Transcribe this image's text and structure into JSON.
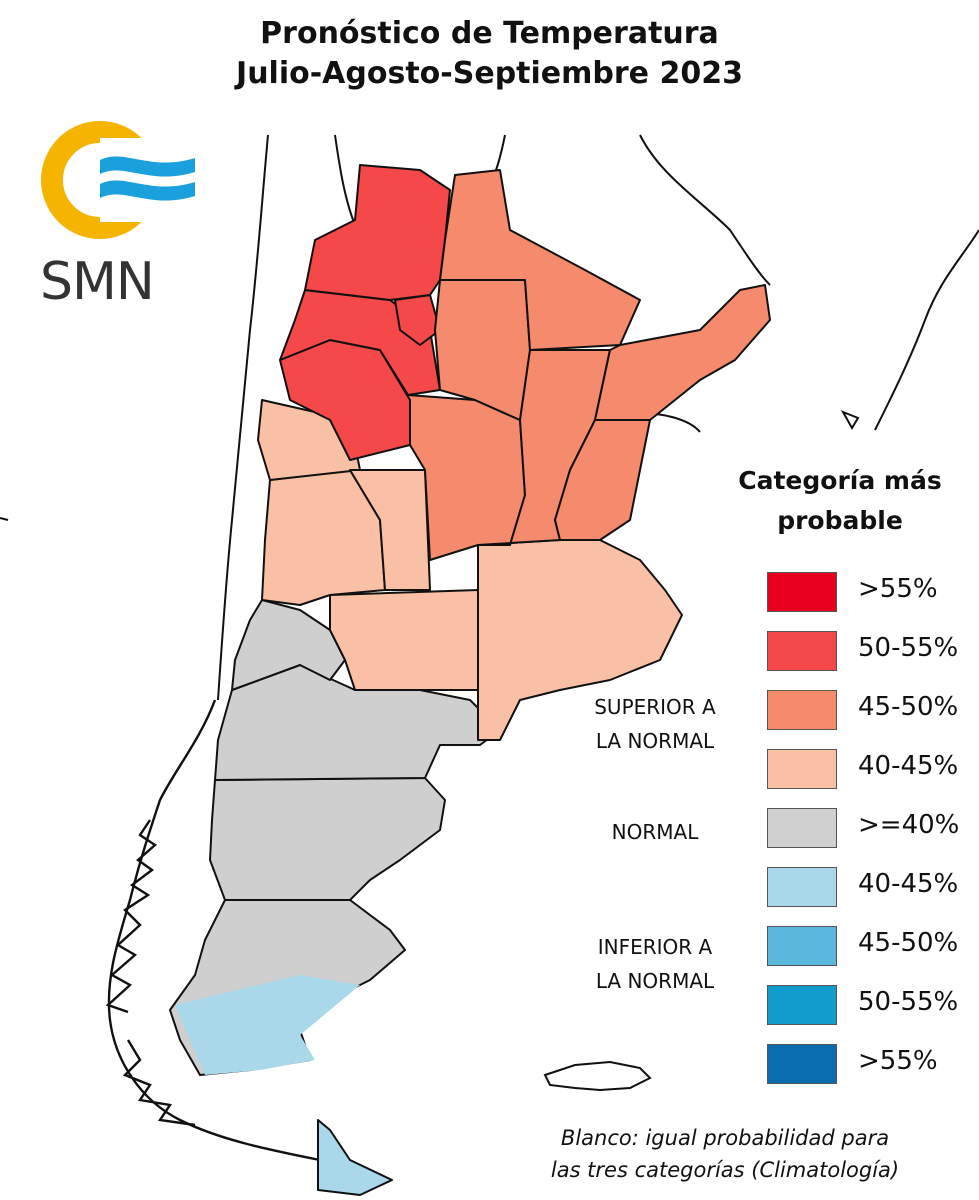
{
  "title": {
    "line1": "Pronóstico de Temperatura",
    "line2": "Julio-Agosto-Septiembre 2023"
  },
  "logo": {
    "text": "SMN",
    "ring_color": "#f5b400",
    "wave_color": "#1aa0dc"
  },
  "legend": {
    "title_line1": "Categoría más",
    "title_line2": "probable",
    "groups": [
      {
        "line1": "SUPERIOR A",
        "line2": "LA NORMAL"
      },
      {
        "line1": "NORMAL",
        "line2": ""
      },
      {
        "line1": "INFERIOR A",
        "line2": "LA NORMAL"
      }
    ],
    "items": [
      {
        "label": ">55%",
        "color": "#e8001e"
      },
      {
        "label": "50-55%",
        "color": "#f54848"
      },
      {
        "label": "45-50%",
        "color": "#f58a6c"
      },
      {
        "label": "40-45%",
        "color": "#f9c0a5"
      },
      {
        "label": ">=40%",
        "color": "#d0d0d0"
      },
      {
        "label": "40-45%",
        "color": "#a8d8ea"
      },
      {
        "label": "45-50%",
        "color": "#5ab8dc"
      },
      {
        "label": "50-55%",
        "color": "#109ccd"
      },
      {
        "label": ">55%",
        "color": "#0a6fb0"
      }
    ]
  },
  "note": {
    "line1": "Blanco: igual probabilidad para",
    "line2": "las tres categorías (Climatología)"
  }
}
